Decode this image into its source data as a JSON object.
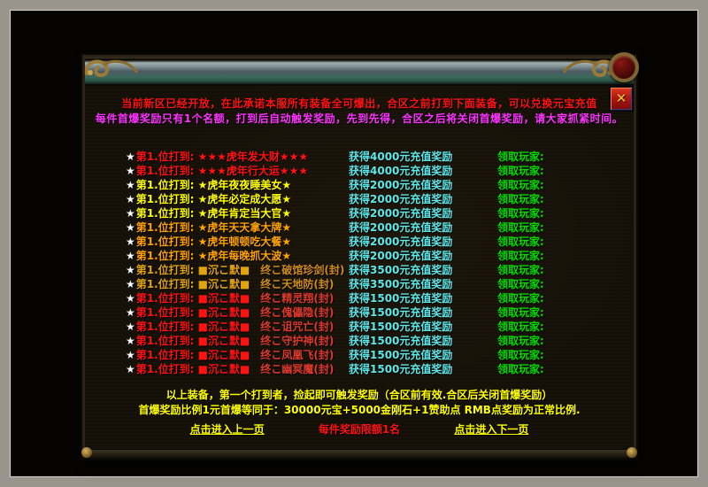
{
  "window": {
    "close_glyph": "✕"
  },
  "header": {
    "line1": "当前新区已经开放，在此承诺本服所有装备全可爆出，合区之前打到下面装备，可以兑换元宝充值",
    "line2": "每件首爆奖励只有1个名额，打到后自动触发奖励，先到先得，合区之后将关闭首爆奖励，请大家抓紧时间。"
  },
  "colors": {
    "red": "#ff1212",
    "yellow": "#ffff00",
    "orange": "#ffa200",
    "gold": "#e0a410",
    "gold_item": "#cf8c1e",
    "red_item": "#e03a2c",
    "reward_cyan": "#5fe8e8",
    "claim_green": "#00dd00",
    "star_white": "#ffffff",
    "magenta": "#ff33ff"
  },
  "rows": [
    {
      "star": "★",
      "label": "第1.位打到: ",
      "color": "#ff1212",
      "segments": [
        {
          "text": "★★★虎年发大财★★★",
          "color": "#ff1212"
        }
      ],
      "reward": "获得4000元充值奖励",
      "claim": "领取玩家:"
    },
    {
      "star": "★",
      "label": "第1.位打到: ",
      "color": "#ff1212",
      "segments": [
        {
          "text": "★★★虎年行大运★★★",
          "color": "#ff1212"
        }
      ],
      "reward": "获得4000元充值奖励",
      "claim": "领取玩家:"
    },
    {
      "star": "★",
      "label": "第1.位打到: ",
      "color": "#ffff00",
      "segments": [
        {
          "text": "★虎年夜夜睡美女★",
          "color": "#ffff00"
        }
      ],
      "reward": "获得2000元充值奖励",
      "claim": "领取玩家:"
    },
    {
      "star": "★",
      "label": "第1.位打到: ",
      "color": "#ffff00",
      "segments": [
        {
          "text": "★虎年必定成大愿★",
          "color": "#ffff00"
        }
      ],
      "reward": "获得2000元充值奖励",
      "claim": "领取玩家:"
    },
    {
      "star": "★",
      "label": "第1.位打到: ",
      "color": "#ffff00",
      "segments": [
        {
          "text": "★虎年肯定当大官★",
          "color": "#ffff00"
        }
      ],
      "reward": "获得2000元充值奖励",
      "claim": "领取玩家:"
    },
    {
      "star": "★",
      "label": "第1.位打到: ",
      "color": "#ffa200",
      "segments": [
        {
          "text": "★虎年天天拿大牌★",
          "color": "#ffa200"
        }
      ],
      "reward": "获得2000元充值奖励",
      "claim": "领取玩家:"
    },
    {
      "star": "★",
      "label": "第1.位打到: ",
      "color": "#ffa200",
      "segments": [
        {
          "text": "★虎年顿顿吃大餐★",
          "color": "#ffa200"
        }
      ],
      "reward": "获得2000元充值奖励",
      "claim": "领取玩家:"
    },
    {
      "star": "★",
      "label": "第1.位打到: ",
      "color": "#ffa200",
      "segments": [
        {
          "text": "★虎年每晚抓大波★",
          "color": "#ffa200"
        }
      ],
      "reward": "获得2000元充值奖励",
      "claim": "领取玩家:"
    },
    {
      "star": "★",
      "label": "第1.位打到: ",
      "color": "#e0a410",
      "segments": [
        {
          "text": "■沉こ默■",
          "color": "#e0a410"
        },
        {
          "text": "　终こ破馆珍剑(封)",
          "color": "#cf8c1e"
        }
      ],
      "reward": "获得3500元充值奖励",
      "claim": "领取玩家:"
    },
    {
      "star": "★",
      "label": "第1.位打到: ",
      "color": "#e0a410",
      "segments": [
        {
          "text": "■沉こ默■",
          "color": "#e0a410"
        },
        {
          "text": "　终こ天地防(封)",
          "color": "#cf8c1e"
        }
      ],
      "reward": "获得3500元充值奖励",
      "claim": "领取玩家:"
    },
    {
      "star": "★",
      "label": "第1.位打到: ",
      "color": "#ff1212",
      "segments": [
        {
          "text": "■沉こ默■",
          "color": "#ff1212"
        },
        {
          "text": "　终こ精灵翔(封)",
          "color": "#e03a2c"
        }
      ],
      "reward": "获得1500元充值奖励",
      "claim": "领取玩家:"
    },
    {
      "star": "★",
      "label": "第1.位打到: ",
      "color": "#ff1212",
      "segments": [
        {
          "text": "■沉こ默■",
          "color": "#ff1212"
        },
        {
          "text": "　终こ傀儡隐(封)",
          "color": "#e03a2c"
        }
      ],
      "reward": "获得1500元充值奖励",
      "claim": "领取玩家:"
    },
    {
      "star": "★",
      "label": "第1.位打到: ",
      "color": "#ff1212",
      "segments": [
        {
          "text": "■沉こ默■",
          "color": "#ff1212"
        },
        {
          "text": "　终こ诅咒亡(封)",
          "color": "#e03a2c"
        }
      ],
      "reward": "获得1500元充值奖励",
      "claim": "领取玩家:"
    },
    {
      "star": "★",
      "label": "第1.位打到: ",
      "color": "#ff1212",
      "segments": [
        {
          "text": "■沉こ默■",
          "color": "#ff1212"
        },
        {
          "text": "　终こ守护神(封)",
          "color": "#e03a2c"
        }
      ],
      "reward": "获得1500元充值奖励",
      "claim": "领取玩家:"
    },
    {
      "star": "★",
      "label": "第1.位打到: ",
      "color": "#ff1212",
      "segments": [
        {
          "text": "■沉こ默■",
          "color": "#ff1212"
        },
        {
          "text": "　终こ凤凰飞(封)",
          "color": "#e03a2c"
        }
      ],
      "reward": "获得1500元充值奖励",
      "claim": "领取玩家:"
    },
    {
      "star": "★",
      "label": "第1.位打到: ",
      "color": "#ff1212",
      "segments": [
        {
          "text": "■沉こ默■",
          "color": "#ff1212"
        },
        {
          "text": "　终こ幽冥魔(封)",
          "color": "#e03a2c"
        }
      ],
      "reward": "获得1500元充值奖励",
      "claim": "领取玩家:"
    }
  ],
  "footer": {
    "line1": "以上装备，第一个打到者，捡起即可触发奖励（合区前有效.合区后关闭首爆奖励）",
    "line2": "首爆奖励比例1元首爆等同于：30000元宝+5000金刚石+1赞助点 RMB点奖励为正常比例.",
    "prev": "点击进入上一页",
    "limit": "每件奖励限额1名",
    "next": "点击进入下一页"
  }
}
